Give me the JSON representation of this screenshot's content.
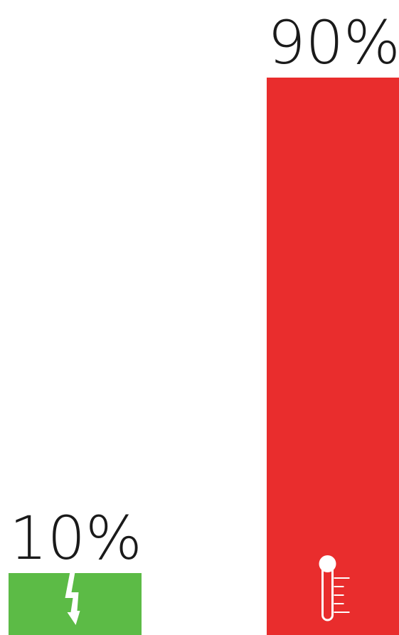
{
  "chart_data": {
    "type": "bar",
    "categories": [
      "power",
      "temperature"
    ],
    "values": [
      10,
      90
    ],
    "value_labels": [
      "10%",
      "90%"
    ],
    "icons": [
      "lightning-icon",
      "thermometer-icon"
    ],
    "colors": [
      "#5cbb46",
      "#e92d2d"
    ],
    "ylim": [
      0,
      100
    ],
    "grid": false,
    "title": "",
    "xlabel": "",
    "ylabel": ""
  }
}
